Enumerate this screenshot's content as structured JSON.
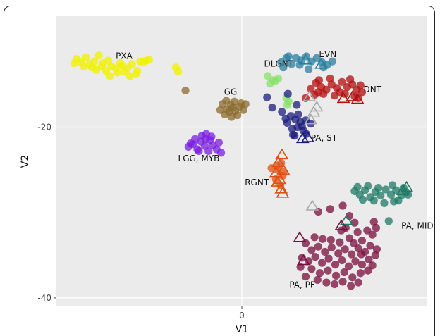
{
  "chart_data": {
    "type": "scatter",
    "title": "",
    "xlabel": "V1",
    "ylabel": "V2",
    "xlim": [
      -25,
      25
    ],
    "ylim": [
      -41,
      -7
    ],
    "x_ticks": [
      0
    ],
    "y_ticks": [
      -20,
      -40
    ],
    "tick_labels": {
      "x": [
        "0"
      ],
      "y": [
        "-20",
        "-40"
      ]
    },
    "grid": true,
    "legend": "none",
    "series": [
      {
        "name": "PXA",
        "color": "#f2f200",
        "label_at": [
          -17,
          -12
        ],
        "points": [
          [
            -22.3,
            -12.0
          ],
          [
            -21.7,
            -12.4
          ],
          [
            -21.0,
            -11.8
          ],
          [
            -20.5,
            -12.6
          ],
          [
            -19.9,
            -12.3
          ],
          [
            -19.3,
            -11.6
          ],
          [
            -18.7,
            -12.5
          ],
          [
            -18.0,
            -12.2
          ],
          [
            -17.6,
            -12.9
          ],
          [
            -17.0,
            -13.1
          ],
          [
            -16.4,
            -12.5
          ],
          [
            -15.9,
            -13.5
          ],
          [
            -15.4,
            -13.1
          ],
          [
            -14.8,
            -12.6
          ],
          [
            -14.1,
            -13.4
          ],
          [
            -13.7,
            -12.3
          ],
          [
            -12.9,
            -12.2
          ],
          [
            -22.6,
            -12.5
          ],
          [
            -21.3,
            -12.9
          ],
          [
            -20.2,
            -13.0
          ],
          [
            -19.6,
            -13.3
          ],
          [
            -18.3,
            -13.4
          ],
          [
            -17.8,
            -14.0
          ],
          [
            -16.8,
            -13.6
          ],
          [
            -15.1,
            -14.0
          ],
          [
            -14.3,
            -13.8
          ],
          [
            -8.9,
            -13.0
          ],
          [
            -8.6,
            -13.5
          ],
          [
            -13.3,
            -12.4
          ],
          [
            -12.5,
            -12.1
          ],
          [
            -16.1,
            -12.8
          ],
          [
            -18.9,
            -12.9
          ]
        ]
      },
      {
        "name": "GG",
        "color": "#8b6b2e",
        "label_at": [
          -2.4,
          -16.2
        ],
        "points": [
          [
            -2.6,
            -17.3
          ],
          [
            -2.0,
            -17.9
          ],
          [
            -1.5,
            -17.4
          ],
          [
            -0.9,
            -18.1
          ],
          [
            -0.3,
            -17.6
          ],
          [
            0.2,
            -18.0
          ],
          [
            -2.3,
            -18.5
          ],
          [
            -1.7,
            -18.2
          ],
          [
            -1.0,
            -17.0
          ],
          [
            -0.6,
            -18.6
          ],
          [
            -2.9,
            -18.0
          ],
          [
            -1.2,
            -17.7
          ],
          [
            0.5,
            -17.3
          ],
          [
            -1.4,
            -18.8
          ],
          [
            -2.1,
            -16.9
          ],
          [
            -0.1,
            -17.2
          ],
          [
            -7.6,
            -15.7
          ]
        ]
      },
      {
        "name": "LGG, MYB",
        "color": "#7b1fe0",
        "label_at": [
          -8.6,
          -24.0
        ],
        "points": [
          [
            -7.2,
            -22.3
          ],
          [
            -6.6,
            -22.0
          ],
          [
            -6.0,
            -22.6
          ],
          [
            -5.5,
            -21.7
          ],
          [
            -5.0,
            -22.2
          ],
          [
            -4.3,
            -21.5
          ],
          [
            -3.9,
            -22.1
          ],
          [
            -5.4,
            -21.0
          ],
          [
            -4.8,
            -20.8
          ],
          [
            -6.3,
            -21.4
          ],
          [
            -3.4,
            -22.6
          ],
          [
            -4.5,
            -22.8
          ],
          [
            -2.8,
            -23.0
          ],
          [
            -6.9,
            -21.9
          ],
          [
            -5.8,
            -22.8
          ],
          [
            -4.1,
            -21.1
          ],
          [
            -3.1,
            -21.8
          ],
          [
            -4.9,
            -21.4
          ]
        ]
      },
      {
        "name": "DLGNT",
        "color": "#88e26b",
        "label_at": [
          3.0,
          -12.9
        ],
        "points": [
          [
            3.5,
            -14.0
          ],
          [
            4.2,
            -14.5
          ],
          [
            4.9,
            -14.3
          ],
          [
            3.8,
            -14.9
          ],
          [
            4.5,
            -14.6
          ],
          [
            6.1,
            -17.4
          ],
          [
            6.3,
            -17.0
          ],
          [
            6.0,
            -16.6
          ]
        ]
      },
      {
        "name": "PA, ST",
        "color": "#1c1c7d",
        "label_at": [
          9.3,
          -21.6
        ],
        "points": [
          [
            3.4,
            -16.5
          ],
          [
            4.1,
            -17.7
          ],
          [
            5.4,
            -18.2
          ],
          [
            6.2,
            -16.1
          ],
          [
            5.9,
            -19.0
          ],
          [
            6.6,
            -18.7
          ],
          [
            6.1,
            -19.5
          ],
          [
            7.2,
            -19.1
          ],
          [
            6.8,
            -20.2
          ],
          [
            7.5,
            -20.0
          ],
          [
            7.9,
            -19.4
          ],
          [
            8.3,
            -20.4
          ],
          [
            7.1,
            -21.0
          ],
          [
            8.7,
            -20.8
          ],
          [
            7.6,
            -18.5
          ],
          [
            7.4,
            -17.4
          ],
          [
            8.1,
            -19.9
          ],
          [
            6.9,
            -20.9
          ],
          [
            9.3,
            -19.6
          ],
          [
            8.6,
            -19.2
          ]
        ]
      },
      {
        "name": "EVN",
        "color": "#2a7fa0",
        "label_at": [
          10.4,
          -11.8
        ],
        "points": [
          [
            5.3,
            -12.4
          ],
          [
            6.0,
            -11.9
          ],
          [
            6.7,
            -12.6
          ],
          [
            7.3,
            -11.9
          ],
          [
            8.0,
            -12.2
          ],
          [
            8.7,
            -11.7
          ],
          [
            9.4,
            -12.3
          ],
          [
            10.1,
            -11.9
          ],
          [
            10.8,
            -12.4
          ],
          [
            11.5,
            -12.7
          ],
          [
            12.2,
            -12.3
          ],
          [
            5.6,
            -13.0
          ],
          [
            7.8,
            -12.7
          ],
          [
            9.0,
            -13.2
          ],
          [
            11.0,
            -13.0
          ],
          [
            6.3,
            -11.7
          ]
        ]
      },
      {
        "name": "DNT",
        "color": "#b30e0e",
        "label_at": [
          16.4,
          -15.9
        ],
        "points": [
          [
            9.3,
            -15.5
          ],
          [
            10.0,
            -14.8
          ],
          [
            10.7,
            -15.3
          ],
          [
            11.4,
            -15.6
          ],
          [
            12.1,
            -15.0
          ],
          [
            12.8,
            -15.4
          ],
          [
            13.5,
            -14.7
          ],
          [
            14.2,
            -15.3
          ],
          [
            14.9,
            -15.0
          ],
          [
            15.5,
            -15.6
          ],
          [
            16.0,
            -15.1
          ],
          [
            9.8,
            -16.2
          ],
          [
            11.0,
            -16.1
          ],
          [
            12.5,
            -16.3
          ],
          [
            13.9,
            -16.1
          ],
          [
            15.2,
            -16.4
          ],
          [
            10.4,
            -14.5
          ],
          [
            13.2,
            -15.9
          ],
          [
            14.6,
            -14.4
          ],
          [
            11.9,
            -14.3
          ],
          [
            16.2,
            -15.9
          ],
          [
            8.6,
            -16.6
          ],
          [
            15.7,
            -16.6
          ],
          [
            10.3,
            -15.9
          ]
        ]
      },
      {
        "name": "RGNT",
        "color": "#e05010",
        "label_at": [
          0.4,
          -26.8
        ],
        "points": [
          [
            4.0,
            -24.8
          ],
          [
            4.8,
            -25.0
          ],
          [
            5.3,
            -24.2
          ],
          [
            5.5,
            -25.7
          ],
          [
            4.6,
            -26.1
          ],
          [
            5.2,
            -26.8
          ],
          [
            4.7,
            -24.5
          ],
          [
            5.6,
            -25.2
          ]
        ]
      },
      {
        "name": "PA, MID",
        "color": "#1d7a64",
        "label_at": [
          21.5,
          -31.9
        ],
        "points": [
          [
            15.2,
            -27.5
          ],
          [
            15.9,
            -27.9
          ],
          [
            16.6,
            -27.4
          ],
          [
            17.3,
            -28.2
          ],
          [
            18.0,
            -27.6
          ],
          [
            18.7,
            -28.0
          ],
          [
            19.4,
            -27.3
          ],
          [
            20.1,
            -27.9
          ],
          [
            20.8,
            -27.4
          ],
          [
            21.5,
            -28.0
          ],
          [
            22.1,
            -27.6
          ],
          [
            16.3,
            -28.5
          ],
          [
            17.8,
            -28.6
          ],
          [
            19.2,
            -28.9
          ],
          [
            20.5,
            -28.7
          ],
          [
            21.8,
            -27.1
          ],
          [
            18.4,
            -27.1
          ],
          [
            15.6,
            -27.0
          ],
          [
            17.0,
            -26.9
          ],
          [
            21.1,
            -28.6
          ],
          [
            22.4,
            -27.9
          ],
          [
            20.3,
            -26.8
          ],
          [
            19.8,
            -31.0
          ]
        ]
      },
      {
        "name": "PA, PF",
        "color": "#7a0e3e",
        "label_at": [
          6.4,
          -38.8
        ],
        "points": [
          [
            13.6,
            -29.2
          ],
          [
            14.5,
            -30.4
          ],
          [
            15.2,
            -31.2
          ],
          [
            14.0,
            -31.8
          ],
          [
            15.6,
            -32.3
          ],
          [
            13.4,
            -32.1
          ],
          [
            11.9,
            -29.6
          ],
          [
            8.6,
            -33.6
          ],
          [
            9.4,
            -34.4
          ],
          [
            10.3,
            -34.0
          ],
          [
            11.2,
            -34.6
          ],
          [
            12.1,
            -34.1
          ],
          [
            13.0,
            -34.8
          ],
          [
            13.9,
            -34.3
          ],
          [
            14.8,
            -34.9
          ],
          [
            15.7,
            -34.2
          ],
          [
            16.6,
            -34.6
          ],
          [
            17.3,
            -33.9
          ],
          [
            17.6,
            -32.6
          ],
          [
            16.9,
            -32.1
          ],
          [
            18.1,
            -31.8
          ],
          [
            17.8,
            -31.1
          ],
          [
            16.2,
            -33.3
          ],
          [
            8.1,
            -35.3
          ],
          [
            9.0,
            -35.7
          ],
          [
            9.9,
            -35.2
          ],
          [
            10.8,
            -35.9
          ],
          [
            11.7,
            -35.4
          ],
          [
            12.6,
            -36.1
          ],
          [
            13.5,
            -35.6
          ],
          [
            14.4,
            -36.3
          ],
          [
            15.3,
            -35.7
          ],
          [
            16.2,
            -36.1
          ],
          [
            17.1,
            -35.5
          ],
          [
            18.0,
            -35.0
          ],
          [
            9.4,
            -36.6
          ],
          [
            10.5,
            -37.1
          ],
          [
            11.6,
            -36.8
          ],
          [
            12.7,
            -37.4
          ],
          [
            13.8,
            -37.0
          ],
          [
            14.9,
            -37.6
          ],
          [
            16.0,
            -37.1
          ],
          [
            17.0,
            -36.8
          ],
          [
            10.2,
            -37.9
          ],
          [
            11.4,
            -38.2
          ],
          [
            12.5,
            -38.4
          ],
          [
            13.6,
            -38.1
          ],
          [
            14.7,
            -38.6
          ],
          [
            15.7,
            -38.2
          ],
          [
            8.6,
            -37.5
          ],
          [
            17.6,
            -36.2
          ],
          [
            12.0,
            -33.2
          ],
          [
            13.2,
            -33.5
          ],
          [
            14.5,
            -33.0
          ],
          [
            10.9,
            -33.1
          ],
          [
            9.8,
            -32.9
          ],
          [
            16.1,
            -34.9
          ],
          [
            18.2,
            -34.3
          ],
          [
            7.9,
            -36.4
          ],
          [
            15.1,
            -33.6
          ],
          [
            10.3,
            -29.9
          ]
        ]
      }
    ],
    "triangle_series": [
      {
        "color": "#1c1c7d",
        "points": [
          [
            8.2,
            -21.3
          ],
          [
            8.9,
            -21.2
          ]
        ]
      },
      {
        "color": "#b30e0e",
        "points": [
          [
            13.7,
            -16.6
          ],
          [
            14.9,
            -16.4
          ],
          [
            15.6,
            -16.7
          ]
        ]
      },
      {
        "color": "#e05010",
        "points": [
          [
            5.4,
            -23.2
          ],
          [
            4.9,
            -24.1
          ],
          [
            5.6,
            -25.0
          ],
          [
            4.6,
            -25.3
          ],
          [
            5.1,
            -26.1
          ],
          [
            4.8,
            -26.4
          ],
          [
            5.3,
            -27.2
          ],
          [
            5.5,
            -27.7
          ]
        ]
      },
      {
        "color": "#1d7a64",
        "points": [
          [
            21.7,
            -27.4
          ],
          [
            22.2,
            -27.0
          ],
          [
            14.1,
            -30.9
          ]
        ]
      },
      {
        "color": "#7a0e3e",
        "points": [
          [
            13.4,
            -31.5
          ],
          [
            7.8,
            -32.9
          ],
          [
            8.3,
            -35.6
          ]
        ]
      },
      {
        "color": "#2a7fa0",
        "points": [
          [
            8.6,
            -12.1
          ],
          [
            10.7,
            -12.6
          ]
        ]
      },
      {
        "color": "#aaaaaa",
        "points": [
          [
            9.3,
            -19.1
          ],
          [
            9.7,
            -18.2
          ],
          [
            10.1,
            -17.6
          ],
          [
            9.1,
            -16.4
          ],
          [
            9.5,
            -29.2
          ]
        ]
      }
    ]
  }
}
